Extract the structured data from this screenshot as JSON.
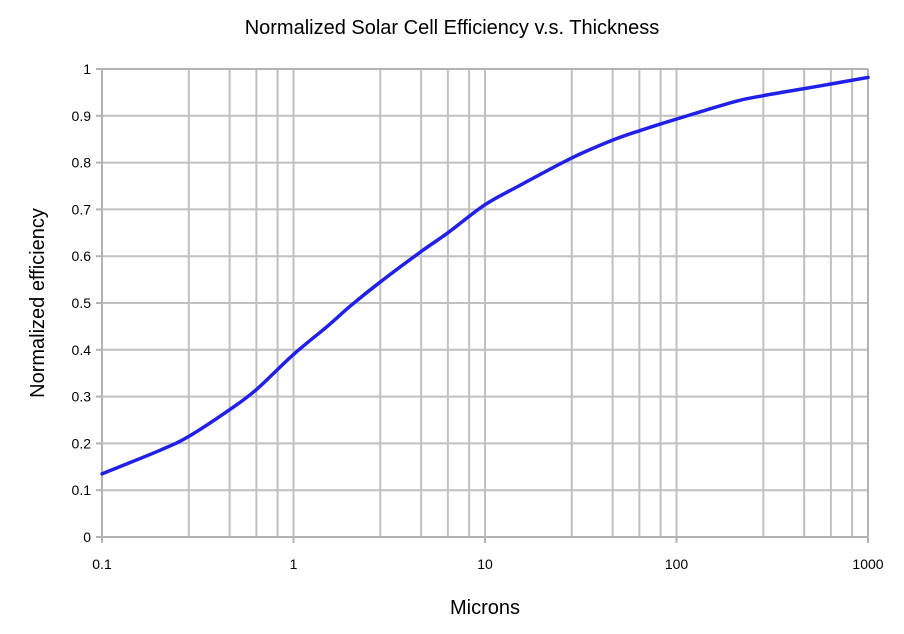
{
  "chart_data": {
    "type": "line",
    "title": "Normalized Solar Cell Efficiency v.s. Thickness",
    "xlabel": "Microns",
    "ylabel": "Normalized efficiency",
    "x_scale": "log",
    "xlim": [
      0.1,
      1000
    ],
    "ylim": [
      0,
      1
    ],
    "grid": true,
    "x_ticks": [
      0.1,
      1,
      10,
      100,
      1000
    ],
    "x_tick_labels": [
      "0.1",
      "1",
      "10",
      "100",
      "1000"
    ],
    "x_minor_gridlines_per_decade": [
      2.84,
      4.64,
      6.4,
      8.26
    ],
    "y_ticks": [
      0,
      0.1,
      0.2,
      0.3,
      0.4,
      0.5,
      0.6,
      0.7,
      0.8,
      0.9,
      1
    ],
    "y_tick_labels": [
      "0",
      "0.1",
      "0.2",
      "0.3",
      "0.4",
      "0.5",
      "0.6",
      "0.7",
      "0.8",
      "0.9",
      "1"
    ],
    "series": [
      {
        "name": "Normalized efficiency",
        "color": "#2020e8",
        "x": [
          0.1,
          0.2,
          0.284,
          0.464,
          0.64,
          1,
          1.5,
          2,
          2.84,
          4.64,
          6.4,
          10,
          15,
          28.4,
          46.4,
          64,
          100,
          200,
          284,
          464,
          640,
          1000
        ],
        "y": [
          0.135,
          0.185,
          0.215,
          0.272,
          0.315,
          0.39,
          0.45,
          0.495,
          0.545,
          0.61,
          0.65,
          0.71,
          0.75,
          0.81,
          0.848,
          0.868,
          0.893,
          0.93,
          0.943,
          0.958,
          0.968,
          0.982
        ]
      }
    ],
    "legend": "none"
  },
  "colors": {
    "grid": "#c0c0c0",
    "axis": "#b3b3b3",
    "line": "#2020e8",
    "text": "#000000"
  }
}
